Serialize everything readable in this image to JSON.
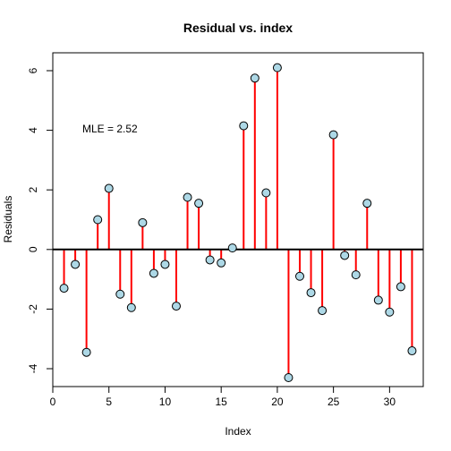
{
  "chart_data": {
    "type": "line",
    "style": "residual-stem-plot",
    "title": "Residual vs. index",
    "xlabel": "Index",
    "ylabel": "Residuals",
    "xlim": [
      0,
      33
    ],
    "ylim": [
      -4.6,
      6.6
    ],
    "xticks": [
      0,
      5,
      10,
      15,
      20,
      25,
      30
    ],
    "yticks": [
      -4,
      -2,
      0,
      2,
      4,
      6
    ],
    "annotation": "MLE = 2.52",
    "reference_line_y": 0,
    "x": [
      1,
      2,
      3,
      4,
      5,
      6,
      7,
      8,
      9,
      10,
      11,
      12,
      13,
      14,
      15,
      16,
      17,
      18,
      19,
      20,
      21,
      22,
      23,
      24,
      25,
      26,
      27,
      28,
      29,
      30,
      31,
      32
    ],
    "values": [
      -1.3,
      -0.5,
      -3.45,
      1.0,
      2.05,
      -1.5,
      -1.95,
      0.9,
      -0.8,
      -0.5,
      -1.9,
      1.75,
      1.55,
      -0.35,
      -0.45,
      0.05,
      4.15,
      5.75,
      1.9,
      6.1,
      -4.3,
      -0.9,
      -1.45,
      -2.05,
      3.85,
      -0.2,
      -0.85,
      1.55,
      -1.7,
      -2.1,
      -1.25,
      -3.4
    ],
    "colors": {
      "stem": "#ff0000",
      "point_fill": "#add8e6",
      "point_stroke": "#000000",
      "axis": "#000000",
      "zero_line": "#000000"
    }
  }
}
